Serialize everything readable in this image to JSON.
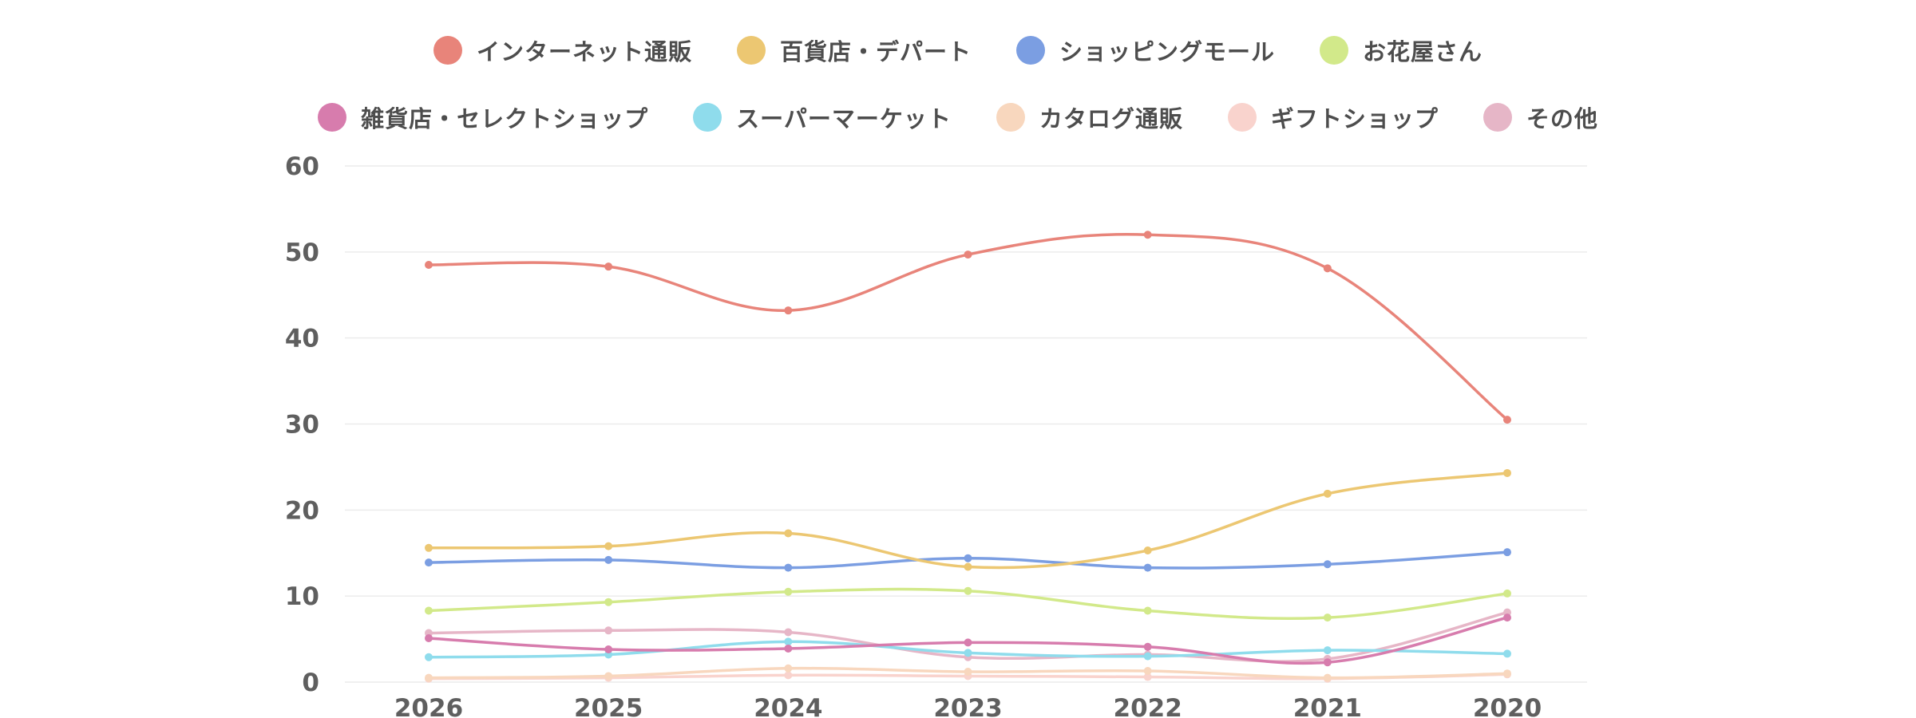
{
  "chart_data": {
    "type": "line",
    "title": "",
    "xlabel": "",
    "ylabel": "",
    "categories": [
      "2026",
      "2025",
      "2024",
      "2023",
      "2022",
      "2021",
      "2020"
    ],
    "ylim": [
      0,
      60
    ],
    "yticks": [
      "0",
      "10",
      "20",
      "30",
      "40",
      "50",
      "60"
    ],
    "grid": true,
    "legend_position": "top-center",
    "series": [
      {
        "name": "インターネット通販",
        "color": "#e8847a",
        "values": [
          48.5,
          48.3,
          43.2,
          49.7,
          52.0,
          48.1,
          30.5
        ]
      },
      {
        "name": "百貨店・デパート",
        "color": "#ecc772",
        "values": [
          15.6,
          15.8,
          17.3,
          13.4,
          15.3,
          21.9,
          24.3
        ]
      },
      {
        "name": "ショッピングモール",
        "color": "#7b9ee2",
        "values": [
          13.9,
          14.2,
          13.3,
          14.4,
          13.3,
          13.7,
          15.1
        ]
      },
      {
        "name": "お花屋さん",
        "color": "#d2e98a",
        "values": [
          8.3,
          9.3,
          10.5,
          10.6,
          8.3,
          7.5,
          10.3
        ]
      },
      {
        "name": "雑貨店・セレクトショップ",
        "color": "#d77cad",
        "values": [
          5.1,
          3.8,
          3.9,
          4.6,
          4.1,
          2.3,
          7.5
        ]
      },
      {
        "name": "スーパーマーケット",
        "color": "#8fdcec",
        "values": [
          2.9,
          3.2,
          4.7,
          3.4,
          3.0,
          3.7,
          3.3
        ]
      },
      {
        "name": "カタログ通販",
        "color": "#f8d7be",
        "values": [
          0.5,
          0.7,
          1.6,
          1.2,
          1.3,
          0.5,
          1.0
        ]
      },
      {
        "name": "ギフトショップ",
        "color": "#f9d3cd",
        "values": [
          0.4,
          0.5,
          0.8,
          0.7,
          0.6,
          0.4,
          0.9
        ]
      },
      {
        "name": "その他",
        "color": "#e6b6c7",
        "values": [
          5.7,
          6.0,
          5.8,
          2.9,
          3.2,
          2.7,
          8.1
        ]
      }
    ]
  }
}
